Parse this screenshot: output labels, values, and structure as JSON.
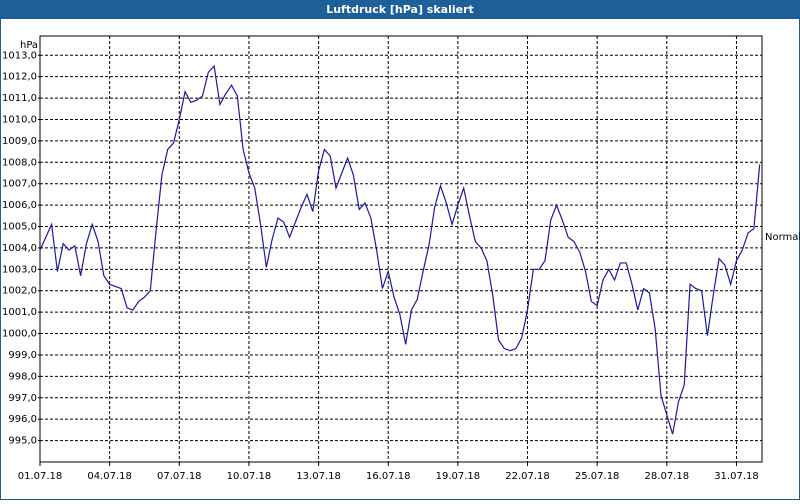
{
  "chart_data": {
    "type": "line",
    "title": "Luftdruck [hPa] skaliert",
    "y_label": "hPa",
    "annotation": {
      "text": "Normal",
      "value": 1004.5
    },
    "x": [
      1,
      1.25,
      1.5,
      1.75,
      2,
      2.25,
      2.5,
      2.75,
      3,
      3.25,
      3.5,
      3.75,
      4,
      4.25,
      4.5,
      4.75,
      5,
      5.25,
      5.5,
      5.75,
      6,
      6.25,
      6.5,
      6.75,
      7,
      7.25,
      7.5,
      7.75,
      8,
      8.25,
      8.5,
      8.75,
      9,
      9.25,
      9.5,
      9.75,
      10,
      10.25,
      10.5,
      10.75,
      11,
      11.25,
      11.5,
      11.75,
      12,
      12.25,
      12.5,
      12.75,
      13,
      13.25,
      13.5,
      13.75,
      14,
      14.25,
      14.5,
      14.75,
      15,
      15.25,
      15.5,
      15.75,
      16,
      16.25,
      16.5,
      16.75,
      17,
      17.25,
      17.5,
      17.75,
      18,
      18.25,
      18.5,
      18.75,
      19,
      19.25,
      19.5,
      19.75,
      20,
      20.25,
      20.5,
      20.75,
      21,
      21.25,
      21.5,
      21.75,
      22,
      22.25,
      22.5,
      22.75,
      23,
      23.25,
      23.5,
      23.75,
      24,
      24.25,
      24.5,
      24.75,
      25,
      25.25,
      25.5,
      25.75,
      26,
      26.25,
      26.5,
      26.75,
      27,
      27.25,
      27.5,
      27.75,
      28,
      28.25,
      28.5,
      28.75,
      29,
      29.25,
      29.5,
      29.75,
      30,
      30.25,
      30.5,
      30.75,
      31,
      31.25,
      31.5,
      31.75,
      32
    ],
    "series": [
      {
        "color": "#1a1aa0",
        "values": [
          1003.9,
          1004.5,
          1005.1,
          1002.9,
          1004.2,
          1003.9,
          1004.1,
          1002.7,
          1004.2,
          1005.1,
          1004.3,
          1002.7,
          1002.3,
          1002.2,
          1002.1,
          1001.2,
          1001.1,
          1001.5,
          1001.7,
          1002.0,
          1004.8,
          1007.4,
          1008.6,
          1008.9,
          1010.0,
          1011.3,
          1010.8,
          1010.9,
          1011.1,
          1012.2,
          1012.5,
          1010.7,
          1011.2,
          1011.6,
          1011.1,
          1008.6,
          1007.5,
          1006.8,
          1005.1,
          1003.1,
          1004.4,
          1005.4,
          1005.2,
          1004.5,
          1005.2,
          1005.9,
          1006.5,
          1005.7,
          1007.6,
          1008.6,
          1008.3,
          1006.8,
          1007.5,
          1008.2,
          1007.4,
          1005.8,
          1006.1,
          1005.4,
          1003.9,
          1002.1,
          1002.9,
          1001.7,
          1000.9,
          999.5,
          1001.1,
          1001.6,
          1002.9,
          1004.1,
          1005.9,
          1006.9,
          1006.1,
          1005.1,
          1006.0,
          1006.8,
          1005.5,
          1004.3,
          1004.0,
          1003.4,
          1001.8,
          999.7,
          999.3,
          999.2,
          999.3,
          999.8,
          1001.1,
          1003.0,
          1003.0,
          1003.4,
          1005.3,
          1006.0,
          1005.3,
          1004.5,
          1004.3,
          1003.8,
          1002.9,
          1001.5,
          1001.3,
          1002.5,
          1003.0,
          1002.5,
          1003.3,
          1003.3,
          1002.3,
          1001.1,
          1002.1,
          1001.9,
          1000.2,
          997.1,
          996.2,
          995.3,
          996.8,
          997.6,
          1002.3,
          1002.1,
          1002.0,
          999.9,
          1001.8,
          1003.5,
          1003.2,
          1002.3,
          1003.4,
          1003.9,
          1004.7,
          1004.9,
          1007.9
        ]
      }
    ],
    "xlim": [
      1,
      32.1
    ],
    "xticks": [
      {
        "value": 1,
        "label": "01.07.18"
      },
      {
        "value": 4,
        "label": "04.07.18"
      },
      {
        "value": 7,
        "label": "07.07.18"
      },
      {
        "value": 10,
        "label": "10.07.18"
      },
      {
        "value": 13,
        "label": "13.07.18"
      },
      {
        "value": 16,
        "label": "16.07.18"
      },
      {
        "value": 19,
        "label": "19.07.18"
      },
      {
        "value": 22,
        "label": "22.07.18"
      },
      {
        "value": 25,
        "label": "25.07.18"
      },
      {
        "value": 28,
        "label": "28.07.18"
      },
      {
        "value": 31,
        "label": "31.07.18"
      }
    ],
    "ylim": [
      994,
      1013.9
    ],
    "yticks": [
      {
        "value": 995,
        "label": "995,0"
      },
      {
        "value": 996,
        "label": "996,0"
      },
      {
        "value": 997,
        "label": "997,0"
      },
      {
        "value": 998,
        "label": "998,0"
      },
      {
        "value": 999,
        "label": "999,0"
      },
      {
        "value": 1000,
        "label": "1000,0"
      },
      {
        "value": 1001,
        "label": "1001,0"
      },
      {
        "value": 1002,
        "label": "1002,0"
      },
      {
        "value": 1003,
        "label": "1003,0"
      },
      {
        "value": 1004,
        "label": "1004,0"
      },
      {
        "value": 1005,
        "label": "1005,0"
      },
      {
        "value": 1006,
        "label": "1006,0"
      },
      {
        "value": 1007,
        "label": "1007,0"
      },
      {
        "value": 1008,
        "label": "1008,0"
      },
      {
        "value": 1009,
        "label": "1009,0"
      },
      {
        "value": 1010,
        "label": "1010,0"
      },
      {
        "value": 1011,
        "label": "1011,0"
      },
      {
        "value": 1012,
        "label": "1012,0"
      },
      {
        "value": 1013,
        "label": "1013,0"
      }
    ],
    "grid": true
  }
}
